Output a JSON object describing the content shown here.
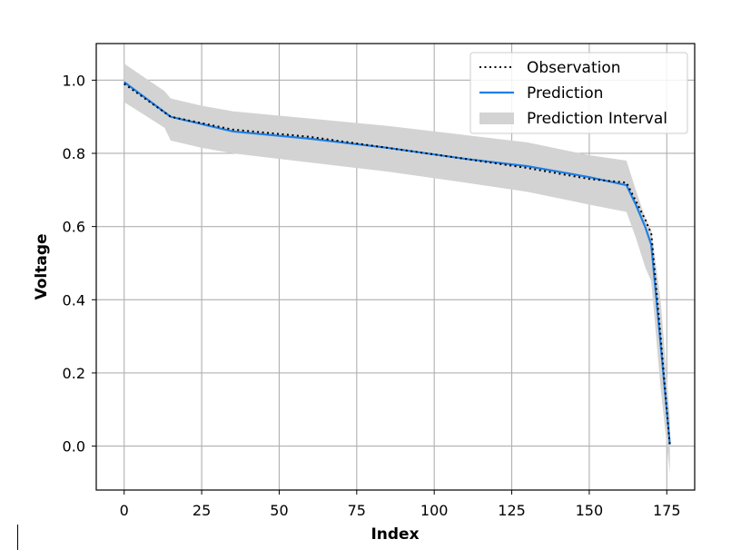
{
  "chart_data": {
    "type": "line",
    "xlabel": "Index",
    "ylabel": "Voltage",
    "xlim": [
      -9,
      184
    ],
    "ylim": [
      -0.12,
      1.1
    ],
    "xticks": [
      0,
      25,
      50,
      75,
      100,
      125,
      150,
      175
    ],
    "yticks": [
      0.0,
      0.2,
      0.4,
      0.6,
      0.8,
      1.0
    ],
    "xtick_labels": [
      "0",
      "25",
      "50",
      "75",
      "100",
      "125",
      "150",
      "175"
    ],
    "ytick_labels": [
      "0.0",
      "0.2",
      "0.4",
      "0.6",
      "0.8",
      "1.0"
    ],
    "grid": true,
    "legend_position": "top-right",
    "series": [
      {
        "name": "Observation",
        "style": "dotted",
        "color": "#000000",
        "x": [
          0,
          15,
          35,
          60,
          85,
          110,
          130,
          150,
          162,
          165,
          168,
          170,
          173,
          176
        ],
        "y": [
          0.99,
          0.9,
          0.865,
          0.845,
          0.815,
          0.785,
          0.76,
          0.73,
          0.72,
          0.67,
          0.62,
          0.58,
          0.3,
          0.0
        ]
      },
      {
        "name": "Prediction",
        "style": "solid",
        "color": "#1e7fe6",
        "x": [
          0,
          15,
          35,
          60,
          85,
          110,
          130,
          150,
          162,
          165,
          168,
          170,
          173,
          176
        ],
        "y": [
          0.995,
          0.9,
          0.86,
          0.84,
          0.815,
          0.785,
          0.765,
          0.735,
          0.713,
          0.66,
          0.6,
          0.55,
          0.28,
          0.005
        ]
      },
      {
        "name": "Prediction Interval",
        "style": "band",
        "color": "#d3d3d3",
        "x": [
          0,
          13,
          15,
          25,
          35,
          60,
          85,
          110,
          130,
          150,
          162,
          165,
          168,
          170,
          173,
          176
        ],
        "upper": [
          1.045,
          0.97,
          0.95,
          0.93,
          0.915,
          0.895,
          0.875,
          0.85,
          0.83,
          0.795,
          0.78,
          0.7,
          0.625,
          0.59,
          0.4,
          0.08
        ],
        "lower": [
          0.94,
          0.87,
          0.835,
          0.815,
          0.8,
          0.775,
          0.75,
          0.72,
          0.695,
          0.66,
          0.64,
          0.57,
          0.49,
          0.45,
          0.16,
          -0.075
        ]
      }
    ]
  }
}
